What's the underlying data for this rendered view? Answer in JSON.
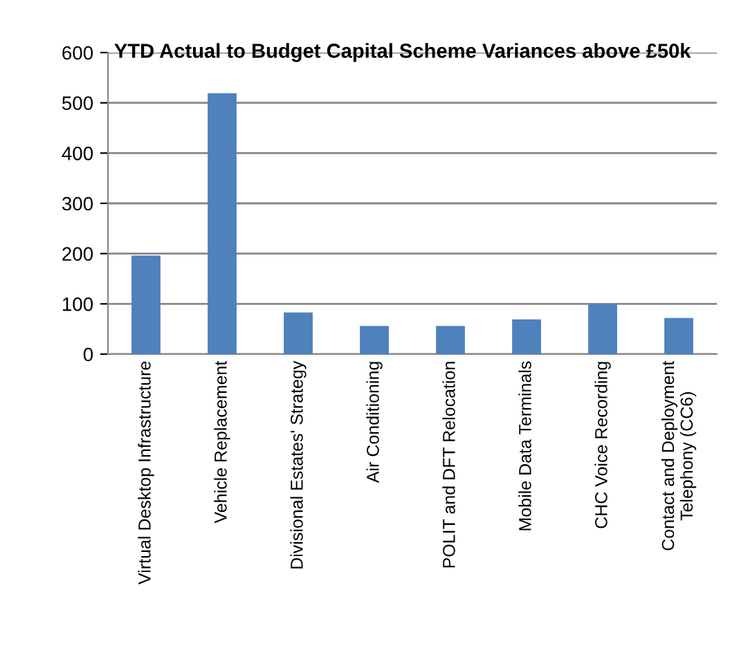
{
  "chart_data": {
    "type": "bar",
    "title": "YTD Actual to Budget Capital Scheme Variances above £50k",
    "categories": [
      "Virtual Desktop Infrastructure",
      "Vehicle Replacement",
      "Divisional Estates' Strategy",
      "Air Conditioning",
      "POLIT and DFT Relocation",
      "Mobile Data Terminals",
      "CHC Voice Recording",
      "Contact and Deployment\nTelephony (CC6)"
    ],
    "values": [
      196,
      519,
      83,
      56,
      56,
      69,
      99,
      72
    ],
    "color": "#4f81bd",
    "ylim": [
      0,
      600
    ],
    "yticks": [
      0,
      100,
      200,
      300,
      400,
      500,
      600
    ],
    "grid": "y"
  }
}
